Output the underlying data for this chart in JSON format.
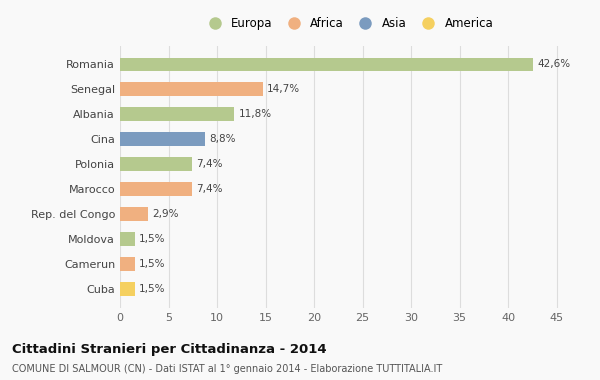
{
  "categories": [
    "Romania",
    "Senegal",
    "Albania",
    "Cina",
    "Polonia",
    "Marocco",
    "Rep. del Congo",
    "Moldova",
    "Camerun",
    "Cuba"
  ],
  "values": [
    42.6,
    14.7,
    11.8,
    8.8,
    7.4,
    7.4,
    2.9,
    1.5,
    1.5,
    1.5
  ],
  "labels": [
    "42,6%",
    "14,7%",
    "11,8%",
    "8,8%",
    "7,4%",
    "7,4%",
    "2,9%",
    "1,5%",
    "1,5%",
    "1,5%"
  ],
  "colors": [
    "#b5c98e",
    "#f0b080",
    "#b5c98e",
    "#7b9bbf",
    "#b5c98e",
    "#f0b080",
    "#f0b080",
    "#b5c98e",
    "#f0b080",
    "#f5d060"
  ],
  "continents": [
    "Europa",
    "Africa",
    "Europa",
    "Asia",
    "Europa",
    "Africa",
    "Africa",
    "Europa",
    "Africa",
    "America"
  ],
  "legend_labels": [
    "Europa",
    "Africa",
    "Asia",
    "America"
  ],
  "legend_colors": [
    "#b5c98e",
    "#f0b080",
    "#7b9bbf",
    "#f5d060"
  ],
  "xlim": [
    0,
    47
  ],
  "xticks": [
    0,
    5,
    10,
    15,
    20,
    25,
    30,
    35,
    40,
    45
  ],
  "title": "Cittadini Stranieri per Cittadinanza - 2014",
  "subtitle": "COMUNE DI SALMOUR (CN) - Dati ISTAT al 1° gennaio 2014 - Elaborazione TUTTITALIA.IT",
  "bg_color": "#f9f9f9",
  "grid_color": "#dddddd",
  "bar_height": 0.55
}
